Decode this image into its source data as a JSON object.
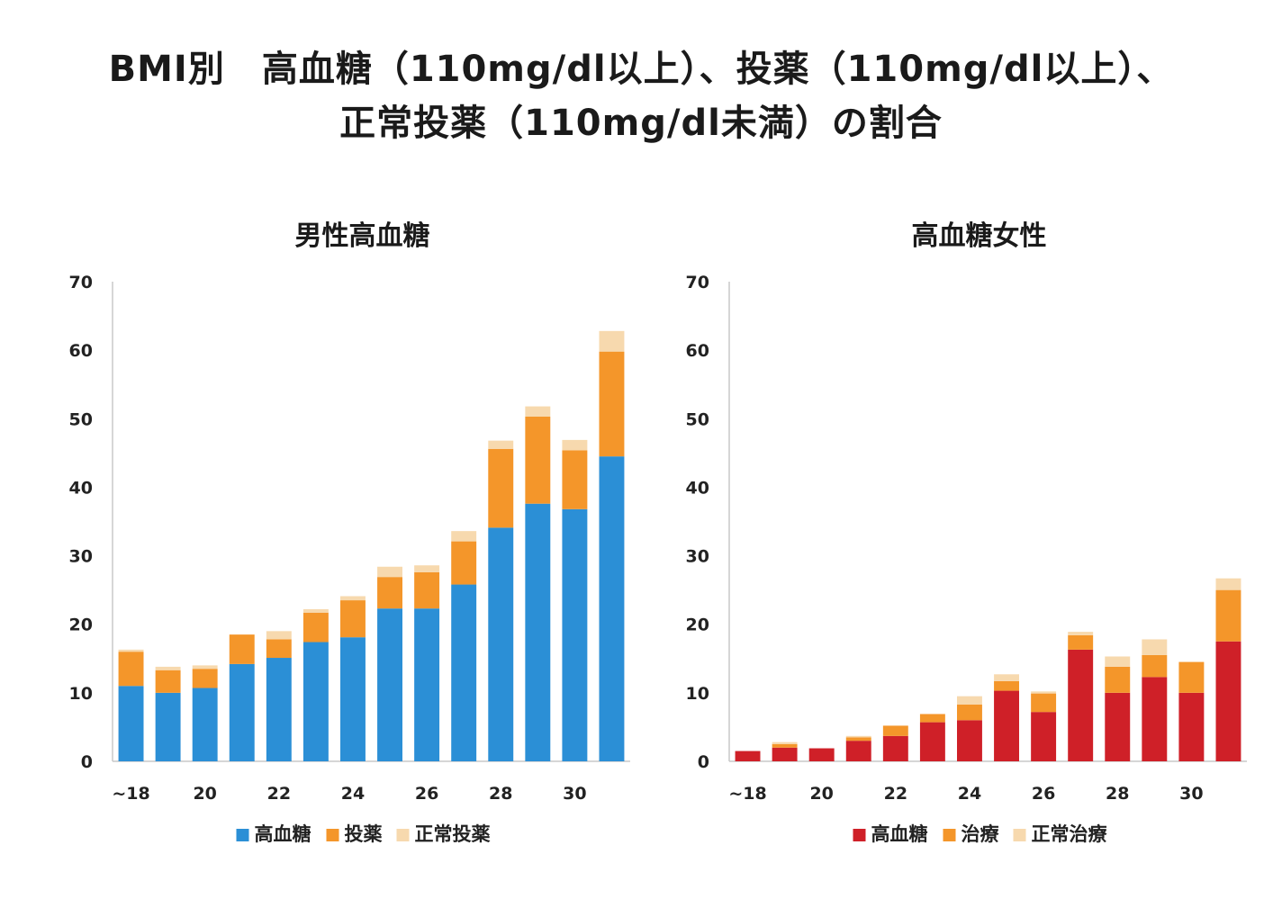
{
  "title": {
    "line1": "BMI別　高血糖（110mg/dl以上）、投薬（110mg/dl以上）、",
    "line2": "正常投薬（110mg/dl未満）の割合"
  },
  "chart_data": [
    {
      "type": "bar",
      "stacked": true,
      "title": "男性高血糖",
      "categories": [
        "~18",
        "19",
        "20",
        "21",
        "22",
        "23",
        "24",
        "25",
        "26",
        "27",
        "28",
        "29",
        "30",
        "31"
      ],
      "x_tick_labels": [
        "~18",
        "20",
        "22",
        "24",
        "26",
        "28",
        "30"
      ],
      "ylim": [
        0,
        70
      ],
      "y_ticks": [
        0,
        10,
        20,
        30,
        40,
        50,
        60,
        70
      ],
      "grid": false,
      "legend_position": "bottom",
      "series": [
        {
          "name": "高血糖",
          "color": "#2b8fd6",
          "values": [
            11,
            10,
            10.7,
            14.2,
            15.1,
            17.4,
            18.1,
            22.3,
            22.3,
            25.8,
            34.1,
            37.6,
            36.8,
            44.5
          ]
        },
        {
          "name": "投薬",
          "color": "#f4962a",
          "values": [
            5,
            3.3,
            2.8,
            4.3,
            2.7,
            4.3,
            5.4,
            4.6,
            5.3,
            6.3,
            11.5,
            12.7,
            8.6,
            15.3
          ]
        },
        {
          "name": "正常投薬",
          "color": "#f7d9ae",
          "values": [
            0.3,
            0.5,
            0.5,
            0,
            1.2,
            0.5,
            0.6,
            1.5,
            1,
            1.5,
            1.2,
            1.5,
            1.5,
            3
          ]
        }
      ]
    },
    {
      "type": "bar",
      "stacked": true,
      "title": "高血糖女性",
      "categories": [
        "~18",
        "19",
        "20",
        "21",
        "22",
        "23",
        "24",
        "25",
        "26",
        "27",
        "28",
        "29",
        "30",
        "31"
      ],
      "x_tick_labels": [
        "~18",
        "20",
        "22",
        "24",
        "26",
        "28",
        "30"
      ],
      "ylim": [
        0,
        70
      ],
      "y_ticks": [
        0,
        10,
        20,
        30,
        40,
        50,
        60,
        70
      ],
      "grid": false,
      "legend_position": "bottom",
      "series": [
        {
          "name": "高血糖",
          "color": "#cf2028",
          "values": [
            1.5,
            2,
            1.9,
            3,
            3.7,
            5.7,
            6,
            10.3,
            7.2,
            16.3,
            10,
            12.3,
            10,
            17.5
          ]
        },
        {
          "name": "治療",
          "color": "#f4962a",
          "values": [
            0,
            0.5,
            0,
            0.5,
            1.5,
            1.2,
            2.3,
            1.4,
            2.7,
            2.1,
            3.8,
            3.2,
            4.5,
            7.5
          ]
        },
        {
          "name": "正常治療",
          "color": "#f7d9ae",
          "values": [
            0,
            0.3,
            0,
            0.2,
            0,
            0,
            1.2,
            1,
            0.3,
            0.5,
            1.5,
            2.3,
            0,
            1.7
          ]
        }
      ]
    }
  ]
}
